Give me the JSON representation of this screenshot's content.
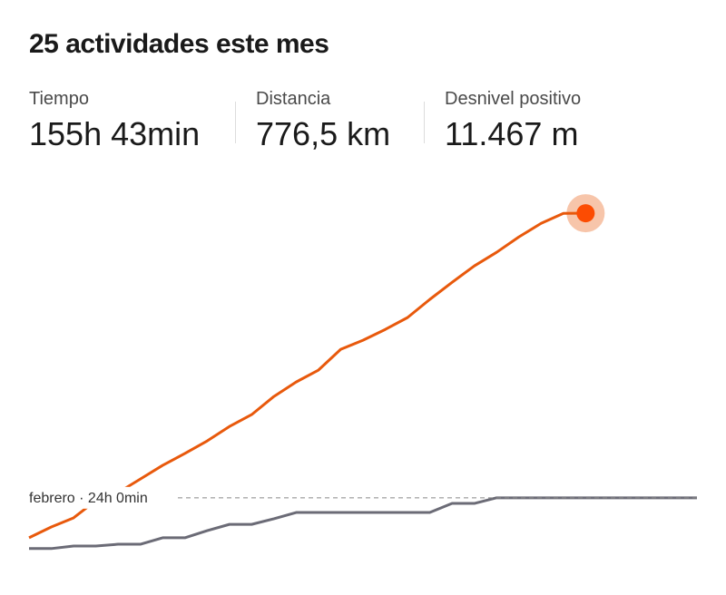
{
  "header": {
    "title": "25 actividades este mes",
    "stats": [
      {
        "label": "Tiempo",
        "value": "155h 43min"
      },
      {
        "label": "Distancia",
        "value": "776,5 km"
      },
      {
        "label": "Desnivel positivo",
        "value": "11.467 m"
      }
    ]
  },
  "chart_data": {
    "type": "line",
    "categories": [
      null,
      null,
      null,
      null,
      null,
      null,
      null,
      null,
      null,
      null,
      null,
      null,
      null,
      null,
      null,
      null,
      null,
      null,
      null,
      null,
      null,
      null,
      null,
      null,
      null,
      null,
      null,
      null,
      null,
      null,
      null
    ],
    "series": [
      {
        "color": "#e8590c",
        "values": [
          5.5,
          10.5,
          14.7,
          22.7,
          26.4,
          32.7,
          39.0,
          44.5,
          50.3,
          57.0,
          62.5,
          70.9,
          77.6,
          83.1,
          92.7,
          96.9,
          101.9,
          107.4,
          115.8,
          123.7,
          131.3,
          137.6,
          144.7,
          151.0,
          155.6,
          155.7,
          null,
          null,
          null,
          null,
          null
        ]
      },
      {
        "color": "#6b6b76",
        "values": [
          0.5,
          0.5,
          1.7,
          1.7,
          2.5,
          2.5,
          5.5,
          5.5,
          8.8,
          11.7,
          11.7,
          14.3,
          17.2,
          17.2,
          17.2,
          17.2,
          17.2,
          17.2,
          17.2,
          21.4,
          21.4,
          24,
          24,
          24,
          24,
          24,
          24,
          24,
          24,
          24,
          24
        ]
      }
    ],
    "reference": {
      "value": 24,
      "label": "febrero · 24h 0min"
    },
    "ylim": [
      0,
      170
    ]
  }
}
